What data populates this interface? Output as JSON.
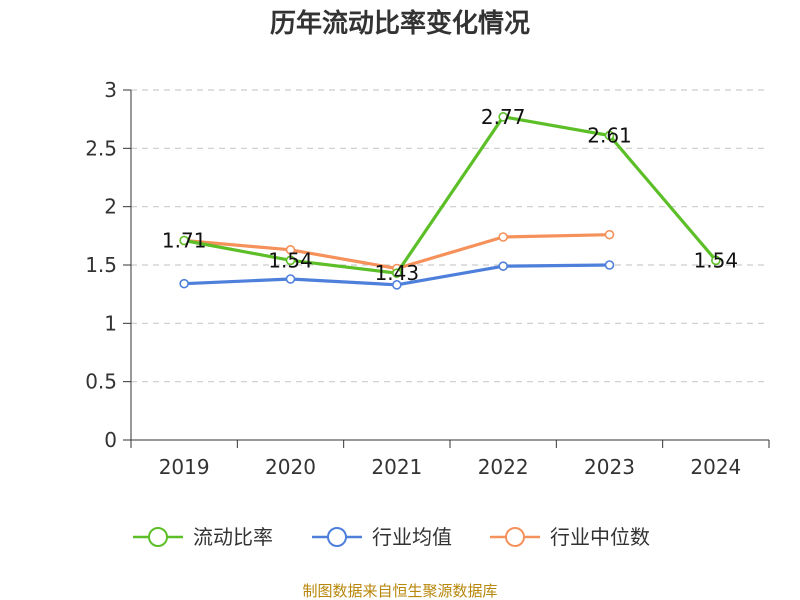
{
  "chart_data": {
    "type": "line",
    "title": "历年流动比率变化情况",
    "categories": [
      "2019",
      "2020",
      "2021",
      "2022",
      "2023",
      "2024"
    ],
    "ylim": [
      0,
      3
    ],
    "yticks": [
      "0",
      "0.5",
      "1",
      "1.5",
      "2",
      "2.5",
      "3"
    ],
    "grid": true,
    "legend_position": "bottom",
    "series": [
      {
        "name": "流动比率",
        "color": "#5cbf28",
        "values": [
          1.71,
          1.54,
          1.43,
          2.77,
          2.61,
          1.54
        ],
        "labels": [
          "1.71",
          "1.54",
          "1.43",
          "2.77",
          "2.61",
          "1.54"
        ]
      },
      {
        "name": "行业均值",
        "color": "#4d7fdb",
        "values": [
          1.34,
          1.38,
          1.33,
          1.49,
          1.5,
          null
        ]
      },
      {
        "name": "行业中位数",
        "color": "#f5915a",
        "values": [
          1.71,
          1.63,
          1.47,
          1.74,
          1.76,
          null
        ]
      }
    ]
  },
  "source": "制图数据来自恒生聚源数据库"
}
